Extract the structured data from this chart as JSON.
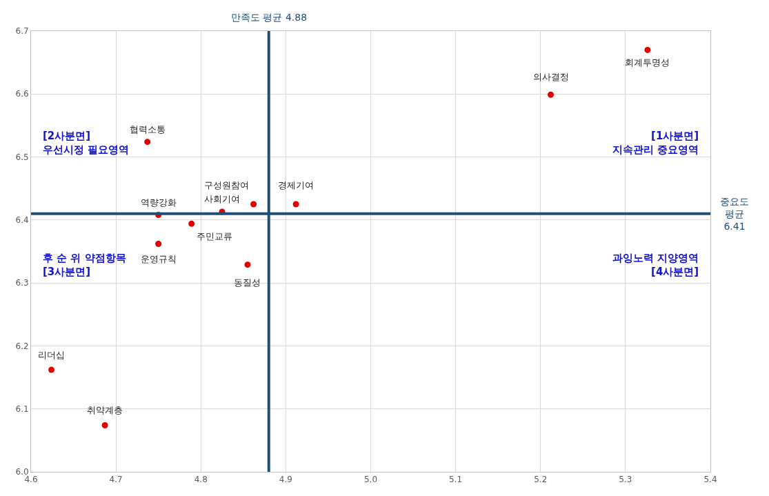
{
  "chart_data": {
    "type": "scatter",
    "xlim": [
      4.6,
      5.4
    ],
    "ylim": [
      6.0,
      6.7
    ],
    "xticks": [
      4.6,
      4.7,
      4.8,
      4.9,
      {
        "value": 5.0,
        "label": "5.0"
      },
      5.1,
      5.2,
      5.3,
      5.4
    ],
    "yticks": [
      {
        "value": 6.0,
        "label": "6.0"
      },
      6.1,
      6.2,
      6.3,
      6.4,
      6.5,
      6.6,
      6.7
    ],
    "grid": true,
    "marker": "circle",
    "series": [
      {
        "color": "#e00000",
        "x": [
          4.737,
          4.75,
          4.825,
          4.862,
          4.912,
          4.789,
          4.75,
          4.855,
          4.624,
          4.687,
          5.212,
          5.326
        ],
        "values": [
          6.524,
          6.408,
          6.413,
          6.425,
          6.425,
          6.394,
          6.362,
          6.329,
          6.162,
          6.074,
          6.599,
          6.67
        ]
      }
    ],
    "ref_lines": [
      {
        "axis": "x",
        "value": 4.88,
        "label": "만족도 평균 4.88",
        "color": "#1f4e79"
      },
      {
        "axis": "y",
        "value": 6.41,
        "label": "중요도\n평균\n6.41",
        "color": "#1f4e79"
      }
    ],
    "annotations": [
      {
        "text": "협력소통",
        "x": 4.737,
        "y": 6.524
      },
      {
        "text": "역량강화",
        "x": 4.75,
        "y": 6.408
      },
      {
        "text": "사회기여",
        "x": 4.825,
        "y": 6.413
      },
      {
        "text": "구성원참여",
        "x": 4.862,
        "y": 6.425
      },
      {
        "text": "경제기여",
        "x": 4.912,
        "y": 6.425
      },
      {
        "text": "주민교류",
        "x": 4.789,
        "y": 6.394
      },
      {
        "text": "운영규칙",
        "x": 4.75,
        "y": 6.362
      },
      {
        "text": "동질성",
        "x": 4.855,
        "y": 6.329
      },
      {
        "text": "리더십",
        "x": 4.624,
        "y": 6.162
      },
      {
        "text": "취약계층",
        "x": 4.687,
        "y": 6.074
      },
      {
        "text": "의사결정",
        "x": 5.212,
        "y": 6.599
      },
      {
        "text": "회계투명성",
        "x": 5.326,
        "y": 6.67
      },
      "[1사분면]\n지속관리 중요영역",
      "[2사분면]\n우선시정 필요영역",
      "후 순 위 약점항목\n[3사분면]",
      "과잉노력 지양영역\n[4사분면]"
    ]
  }
}
